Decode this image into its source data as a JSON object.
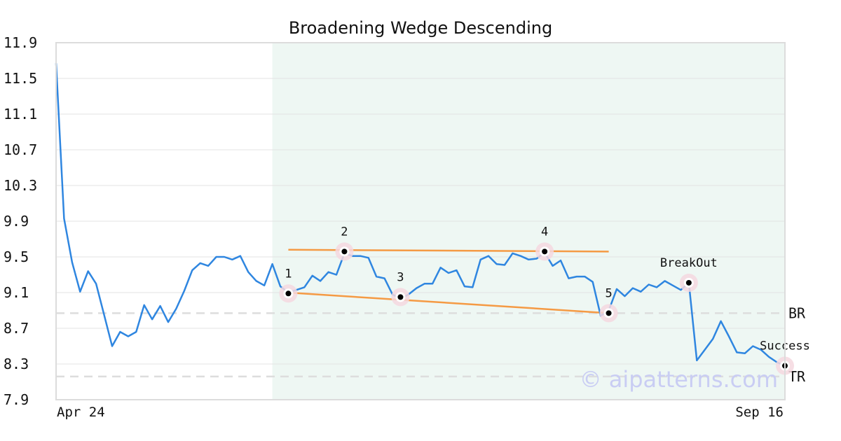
{
  "chart_data": {
    "type": "line",
    "title": "Broadening Wedge Descending",
    "watermark": "© aipatterns.com",
    "ylim": [
      7.9,
      11.9
    ],
    "yticks": [
      7.9,
      8.3,
      8.7,
      9.1,
      9.5,
      9.9,
      10.3,
      10.7,
      11.1,
      11.5,
      11.9
    ],
    "ytick_labels": [
      "7.9",
      "8.3",
      "8.7",
      "9.1",
      "9.5",
      "9.9",
      "10.3",
      "10.7",
      "11.1",
      "11.5",
      "11.9"
    ],
    "x_labels": {
      "start": "Apr 24",
      "end": "Sep 16"
    },
    "grid": true,
    "pattern_region": {
      "start_index": 27,
      "end_index": 91,
      "color": "#eef7f3"
    },
    "series": [
      {
        "color": "#2f86e0",
        "values": [
          11.67,
          9.93,
          9.44,
          9.11,
          9.34,
          9.2,
          8.85,
          8.5,
          8.66,
          8.61,
          8.66,
          8.96,
          8.8,
          8.95,
          8.77,
          8.92,
          9.12,
          9.35,
          9.43,
          9.4,
          9.5,
          9.5,
          9.47,
          9.51,
          9.33,
          9.23,
          9.18,
          9.42,
          9.17,
          9.1,
          9.13,
          9.16,
          9.29,
          9.23,
          9.33,
          9.3,
          9.54,
          9.51,
          9.51,
          9.49,
          9.28,
          9.26,
          9.08,
          9.03,
          9.08,
          9.15,
          9.2,
          9.2,
          9.38,
          9.32,
          9.35,
          9.17,
          9.16,
          9.47,
          9.51,
          9.42,
          9.41,
          9.54,
          9.51,
          9.47,
          9.48,
          9.55,
          9.4,
          9.46,
          9.26,
          9.28,
          9.28,
          9.22,
          8.84,
          8.9,
          9.14,
          9.06,
          9.15,
          9.11,
          9.19,
          9.16,
          9.23,
          9.18,
          9.13,
          9.21,
          8.34,
          8.46,
          8.58,
          8.78,
          8.61,
          8.43,
          8.42,
          8.5,
          8.46,
          8.38,
          8.32,
          8.28
        ]
      }
    ],
    "trend_lines": [
      {
        "color": "#f59a44",
        "from": {
          "x": 29,
          "y": 9.58
        },
        "to": {
          "x": 69,
          "y": 9.56
        }
      },
      {
        "color": "#f59a44",
        "from": {
          "x": 29,
          "y": 9.1
        },
        "to": {
          "x": 69,
          "y": 8.87
        }
      }
    ],
    "points": [
      {
        "label": "1",
        "x": 29,
        "y": 9.09
      },
      {
        "label": "2",
        "x": 36,
        "y": 9.56
      },
      {
        "label": "3",
        "x": 43,
        "y": 9.05
      },
      {
        "label": "4",
        "x": 61,
        "y": 9.56
      },
      {
        "label": "5",
        "x": 69,
        "y": 8.87
      },
      {
        "label": "BreakOut",
        "x": 79,
        "y": 9.21
      },
      {
        "label": "Success",
        "x": 91,
        "y": 8.28
      }
    ],
    "hlines": [
      {
        "label": "BR",
        "value": 8.87,
        "color": "#dddddd"
      },
      {
        "label": "TR",
        "value": 8.16,
        "color": "#dddddd"
      }
    ]
  }
}
